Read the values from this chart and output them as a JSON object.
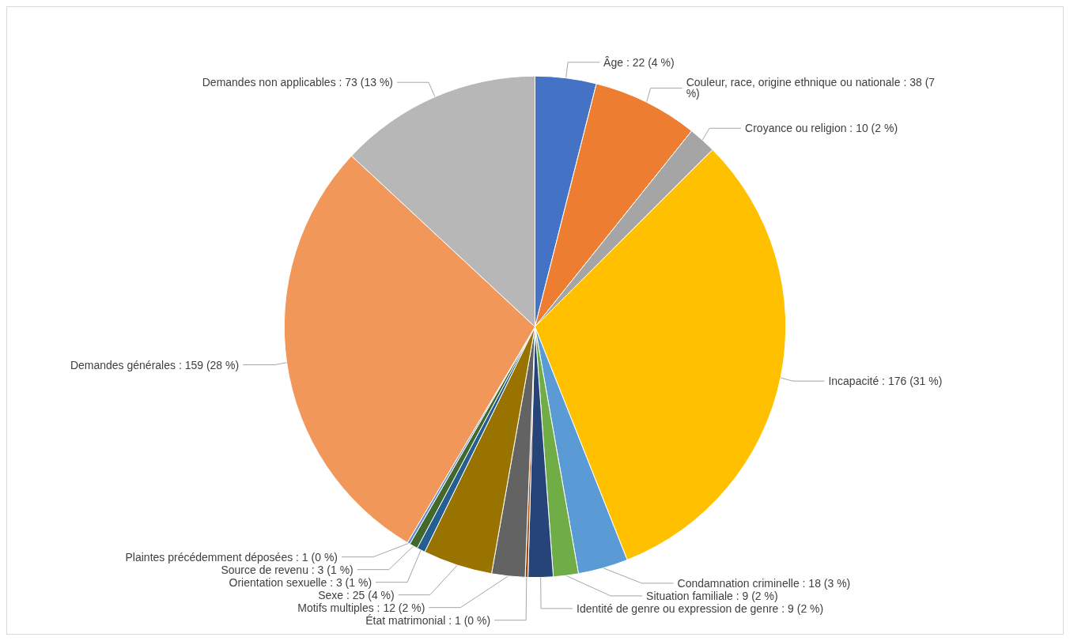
{
  "chart_data": {
    "type": "pie",
    "categories": [
      "Âge",
      "Couleur, race, origine ethnique ou nationale",
      "Croyance ou religion",
      "Incapacité",
      "Condamnation criminelle",
      "Situation familiale",
      "Identité de genre ou expression de genre",
      "État matrimonial",
      "Motifs multiples",
      "Sexe",
      "Orientation sexuelle",
      "Source de revenu",
      "Plaintes précédemment déposées",
      "Demandes générales",
      "Demandes non applicables"
    ],
    "values": [
      22,
      38,
      10,
      176,
      18,
      9,
      9,
      1,
      12,
      25,
      3,
      3,
      1,
      159,
      73
    ],
    "value_labels": [
      "22 (4 %)",
      "38 (7 %)",
      "10 (2 %)",
      "176 (31 %)",
      "18 (3 %)",
      "9 (2 %)",
      "9 (2 %)",
      "1 (0 %)",
      "12 (2 %)",
      "25 (4 %)",
      "3 (1 %)",
      "3 (1 %)",
      "1 (0 %)",
      "159 (28 %)",
      "73 (13 %)"
    ],
    "colors": [
      "#4472c4",
      "#ed7d31",
      "#a5a5a5",
      "#ffc000",
      "#5b9bd5",
      "#70ad47",
      "#264478",
      "#9e480e",
      "#636363",
      "#997300",
      "#255e91",
      "#43682b",
      "#698ed0",
      "#f1975a",
      "#b7b7b7"
    ],
    "legend": false
  }
}
